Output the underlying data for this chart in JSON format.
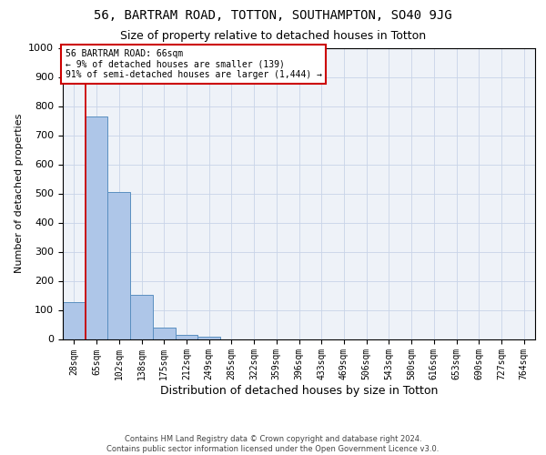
{
  "title": "56, BARTRAM ROAD, TOTTON, SOUTHAMPTON, SO40 9JG",
  "subtitle": "Size of property relative to detached houses in Totton",
  "xlabel": "Distribution of detached houses by size in Totton",
  "ylabel": "Number of detached properties",
  "bar_values": [
    128,
    765,
    505,
    152,
    38,
    14,
    8,
    0,
    0,
    0,
    0,
    0,
    0,
    0,
    0,
    0,
    0,
    0,
    0,
    0,
    0
  ],
  "bar_labels": [
    "28sqm",
    "65sqm",
    "102sqm",
    "138sqm",
    "175sqm",
    "212sqm",
    "249sqm",
    "285sqm",
    "322sqm",
    "359sqm",
    "396sqm",
    "433sqm",
    "469sqm",
    "506sqm",
    "543sqm",
    "580sqm",
    "616sqm",
    "653sqm",
    "690sqm",
    "727sqm",
    "764sqm"
  ],
  "bar_color": "#aec6e8",
  "bar_edge_color": "#5a8fc0",
  "vline_color": "#cc0000",
  "vline_x": 0.5,
  "ylim": [
    0,
    1000
  ],
  "yticks": [
    0,
    100,
    200,
    300,
    400,
    500,
    600,
    700,
    800,
    900,
    1000
  ],
  "annotation_text": "56 BARTRAM ROAD: 66sqm\n← 9% of detached houses are smaller (139)\n91% of semi-detached houses are larger (1,444) →",
  "annotation_box_color": "#cc0000",
  "footer_line1": "Contains HM Land Registry data © Crown copyright and database right 2024.",
  "footer_line2": "Contains public sector information licensed under the Open Government Licence v3.0.",
  "background_color": "#eef2f8",
  "grid_color": "#c8d4e8",
  "title_fontsize": 10,
  "subtitle_fontsize": 9,
  "ylabel_fontsize": 8,
  "xlabel_fontsize": 9,
  "tick_fontsize": 7,
  "annotation_fontsize": 7,
  "footer_fontsize": 6
}
